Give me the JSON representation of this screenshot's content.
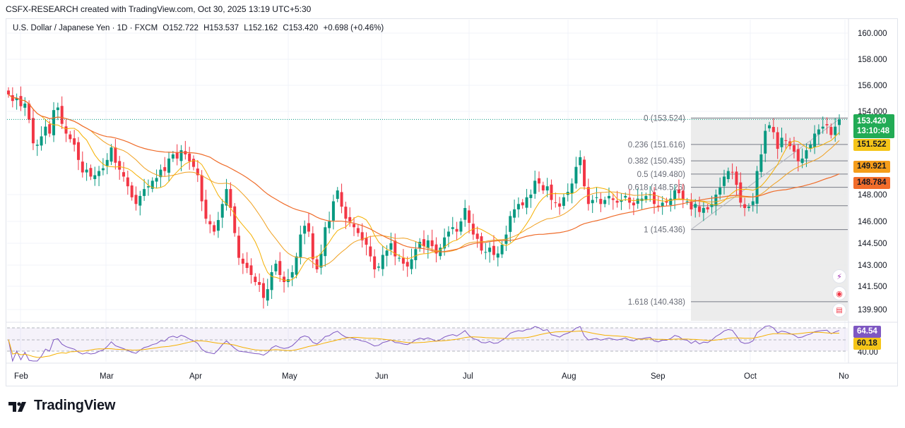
{
  "header_text": "CSFX-RESEARCH created with TradingView.com, Oct 30, 2025 13:19 UTC+5:30",
  "legend": {
    "symbol": "U.S. Dollar / Japanese Yen · 1D · FXCM",
    "open_label": "O",
    "open": "152.722",
    "high_label": "H",
    "high": "153.537",
    "low_label": "L",
    "low": "152.162",
    "close_label": "C",
    "close": "153.420",
    "change": "+0.698 (+0.46%)"
  },
  "brand": {
    "name": "TradingView"
  },
  "colors": {
    "up": "#26a69a",
    "down": "#ef5350",
    "candle_up": "#089981",
    "candle_down": "#f23645",
    "ma_fast": "#f5b000",
    "ma_mid": "#f0a020",
    "ma_slow": "#ef6c2a",
    "fib_line": "#787b86",
    "rsi": "#7e57c2",
    "rsi_ma": "#f5b000",
    "price_tag": "#089981",
    "ma_fast_tag": "#f5c518",
    "ma_mid_tag": "#f59d1a",
    "ma_slow_tag": "#f26d2b"
  },
  "price_tags": {
    "last": "153.420",
    "countdown": "13:10:48",
    "ma_fast": "151.522",
    "ma_mid": "149.921",
    "ma_slow": "148.784"
  },
  "rsi_tags": {
    "rsi": "64.54",
    "rsi_ma": "60.18"
  },
  "chart_data": {
    "type": "candlestick",
    "title": "U.S. Dollar / Japanese Yen · 1D · FXCM",
    "y_axis": {
      "ticks": [
        "160.000",
        "158.000",
        "156.000",
        "154.000",
        "148.000",
        "146.000",
        "144.500",
        "143.000",
        "141.500",
        "139.900"
      ],
      "ylim": [
        139.0,
        161.0
      ]
    },
    "x_axis": {
      "months": [
        "Feb",
        "Mar",
        "Apr",
        "May",
        "Jun",
        "Jul",
        "Aug",
        "Sep",
        "Oct",
        "No"
      ]
    },
    "fibonacci": [
      {
        "level": "0",
        "price": 153.524,
        "label": "0 (153.524)"
      },
      {
        "level": "0.236",
        "price": 151.616,
        "label": "0.236 (151.616)"
      },
      {
        "level": "0.382",
        "price": 150.435,
        "label": "0.382 (150.435)"
      },
      {
        "level": "0.5",
        "price": 149.48,
        "label": "0.5 (149.480)"
      },
      {
        "level": "0.618",
        "price": 148.526,
        "label": "0.618 (148.526)"
      },
      {
        "level": "0.786",
        "price": 147.172,
        "label": ""
      },
      {
        "level": "1",
        "price": 145.436,
        "label": "1 (145.436)"
      },
      {
        "level": "1.618",
        "price": 140.438,
        "label": "1.618 (140.438)"
      }
    ],
    "rsi_axis": {
      "ticks": [
        "40.00"
      ]
    },
    "closes": [
      155.3,
      154.8,
      155.0,
      154.4,
      154.6,
      153.4,
      151.7,
      151.6,
      152.2,
      152.9,
      152.4,
      154.1,
      154.3,
      153.1,
      152.4,
      152.0,
      151.6,
      150.5,
      149.6,
      149.8,
      149.3,
      149.4,
      149.7,
      149.9,
      150.5,
      151.4,
      150.3,
      149.8,
      149.3,
      148.6,
      147.8,
      147.3,
      147.9,
      148.4,
      148.6,
      149.0,
      149.2,
      149.8,
      149.7,
      150.6,
      150.9,
      150.6,
      151.2,
      150.9,
      150.4,
      150.0,
      149.4,
      147.5,
      146.2,
      145.8,
      145.3,
      146.1,
      147.3,
      148.4,
      147.0,
      145.2,
      143.5,
      143.1,
      142.8,
      142.3,
      141.8,
      141.6,
      140.7,
      141.3,
      142.5,
      143.1,
      142.3,
      141.8,
      142.0,
      142.5,
      143.6,
      145.1,
      145.7,
      145.3,
      143.4,
      142.7,
      143.8,
      145.6,
      146.0,
      147.5,
      148.3,
      147.1,
      146.2,
      146.0,
      145.6,
      145.2,
      144.7,
      144.4,
      143.6,
      142.7,
      142.9,
      143.7,
      144.0,
      144.5,
      143.6,
      143.5,
      143.1,
      142.9,
      143.4,
      144.1,
      144.6,
      144.3,
      144.7,
      144.3,
      143.8,
      144.2,
      144.9,
      145.3,
      145.6,
      145.3,
      146.0,
      147.0,
      145.9,
      145.1,
      144.8,
      144.0,
      143.9,
      144.2,
      143.7,
      143.8,
      144.4,
      145.1,
      146.4,
      146.9,
      147.3,
      147.2,
      147.8,
      148.0,
      149.0,
      148.8,
      148.3,
      148.6,
      147.6,
      147.4,
      147.1,
      147.8,
      148.2,
      148.8,
      150.0,
      150.7,
      148.6,
      147.3,
      147.6,
      147.8,
      147.3,
      147.6,
      147.9,
      147.6,
      147.4,
      147.6,
      147.9,
      147.4,
      147.2,
      147.7,
      147.7,
      147.9,
      148.0,
      147.3,
      147.1,
      147.4,
      147.4,
      147.7,
      148.3,
      148.1,
      147.6,
      147.5,
      146.9,
      147.3,
      146.7,
      147.0,
      146.9,
      147.3,
      148.0,
      148.5,
      149.3,
      149.7,
      149.6,
      148.7,
      147.4,
      147.0,
      147.1,
      147.5,
      149.7,
      150.9,
      152.6,
      153.0,
      152.5,
      151.3,
      152.1,
      151.9,
      151.5,
      151.1,
      150.4,
      150.6,
      151.2,
      151.6,
      152.4,
      152.7,
      152.9,
      153.0,
      152.3,
      152.9,
      153.42
    ]
  }
}
